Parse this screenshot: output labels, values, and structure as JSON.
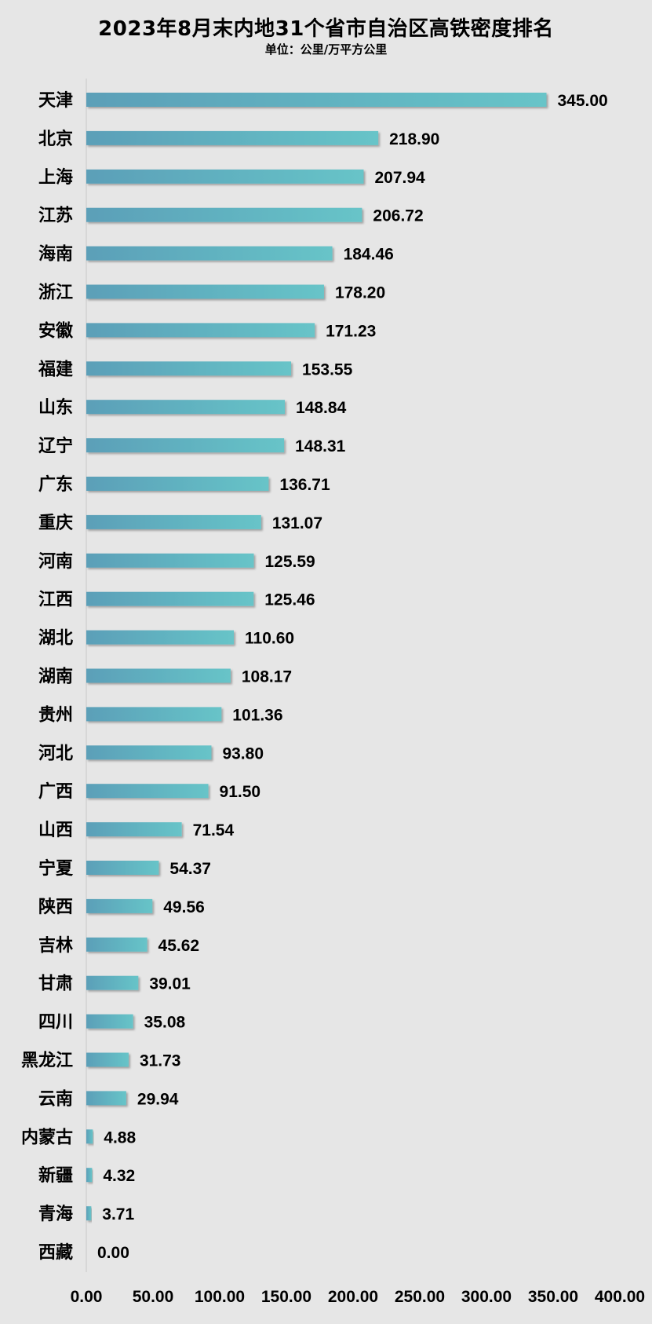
{
  "chart_data": {
    "type": "bar",
    "orientation": "horizontal",
    "title": "2023年8月末内地31个省市自治区高铁密度排名",
    "subtitle": "单位：公里/万平方公里",
    "categories": [
      "天津",
      "北京",
      "上海",
      "江苏",
      "海南",
      "浙江",
      "安徽",
      "福建",
      "山东",
      "辽宁",
      "广东",
      "重庆",
      "河南",
      "江西",
      "湖北",
      "湖南",
      "贵州",
      "河北",
      "广西",
      "山西",
      "宁夏",
      "陕西",
      "吉林",
      "甘肃",
      "四川",
      "黑龙江",
      "云南",
      "内蒙古",
      "新疆",
      "青海",
      "西藏"
    ],
    "values": [
      345.0,
      218.9,
      207.94,
      206.72,
      184.46,
      178.2,
      171.23,
      153.55,
      148.84,
      148.31,
      136.71,
      131.07,
      125.59,
      125.46,
      110.6,
      108.17,
      101.36,
      93.8,
      91.5,
      71.54,
      54.37,
      49.56,
      45.62,
      39.01,
      35.08,
      31.73,
      29.94,
      4.88,
      4.32,
      3.71,
      0.0
    ],
    "value_labels": [
      "345.00",
      "218.90",
      "207.94",
      "206.72",
      "184.46",
      "178.20",
      "171.23",
      "153.55",
      "148.84",
      "148.31",
      "136.71",
      "131.07",
      "125.59",
      "125.46",
      "110.60",
      "108.17",
      "101.36",
      "93.80",
      "91.50",
      "71.54",
      "54.37",
      "49.56",
      "45.62",
      "39.01",
      "35.08",
      "31.73",
      "29.94",
      "4.88",
      "4.32",
      "3.71",
      "0.00"
    ],
    "x_ticks": [
      "0.00",
      "50.00",
      "100.00",
      "150.00",
      "200.00",
      "250.00",
      "300.00",
      "350.00",
      "400.00"
    ],
    "xlim": [
      0,
      400
    ],
    "grid": false,
    "legend": "none",
    "bar_color_start": "#5b9fb8",
    "bar_color_end": "#67c4c8",
    "background": "#e6e6e6"
  }
}
